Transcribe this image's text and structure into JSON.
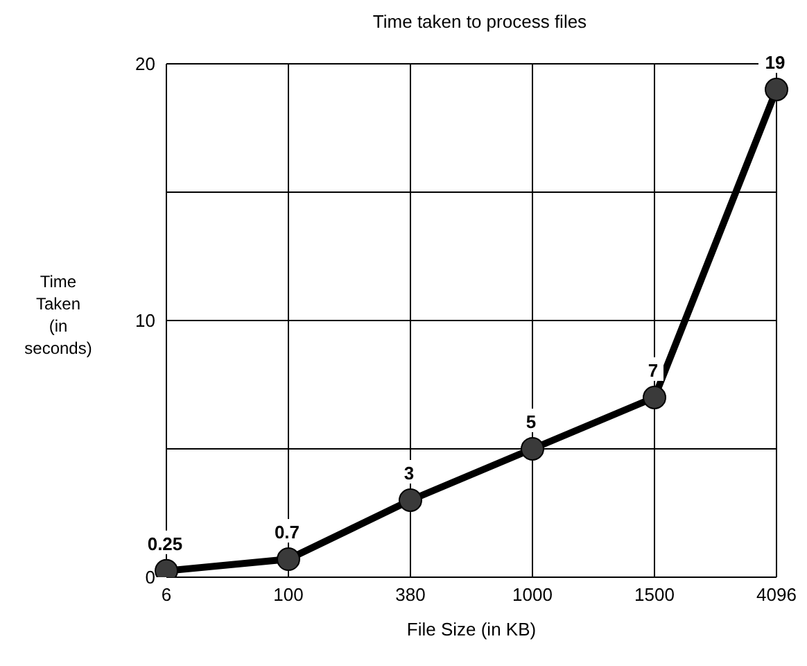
{
  "chart_data": {
    "type": "line",
    "title": "Time taken to process files",
    "xlabel": "File Size (in KB)",
    "ylabel": "Time Taken (in seconds)",
    "categories": [
      "6",
      "100",
      "380",
      "1000",
      "1500",
      "4096"
    ],
    "series": [
      {
        "color": "#000000",
        "values": [
          0.25,
          0.7,
          3,
          5,
          7,
          19
        ]
      }
    ],
    "ylim": [
      0,
      20
    ],
    "yticks": [
      0,
      {
        "value": 5,
        "label": null
      },
      10,
      {
        "value": 15,
        "label": null
      },
      20
    ],
    "grid": true,
    "legend": false,
    "marker": "circle",
    "line_style": "solid",
    "data_labels": true
  }
}
